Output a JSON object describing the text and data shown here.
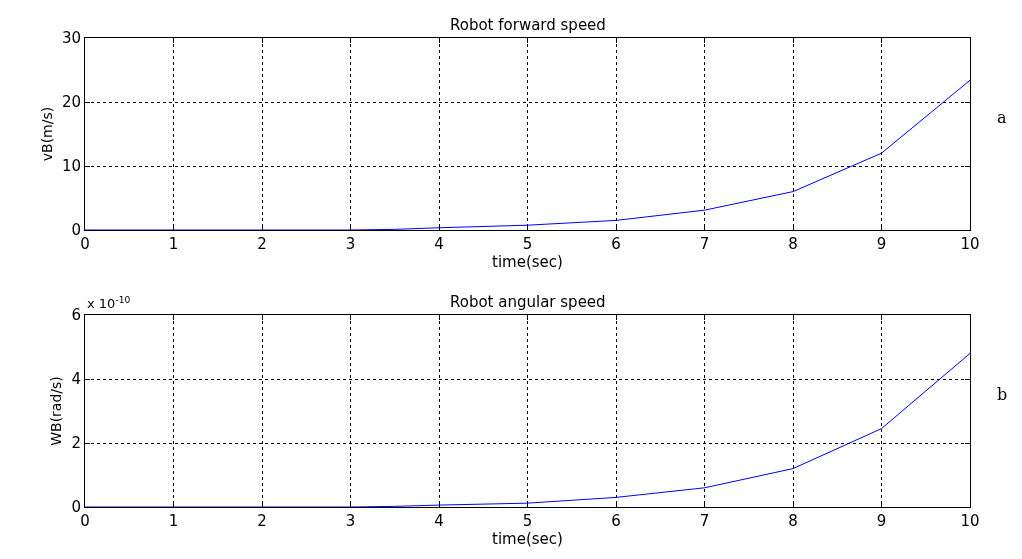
{
  "chart_data": [
    {
      "type": "line",
      "title": "Robot forward speed",
      "xlabel": "time(sec)",
      "ylabel": "vB(m/s)",
      "annotations": [
        "a"
      ],
      "x": [
        0,
        1,
        2,
        3,
        3.5,
        4,
        5,
        6,
        7,
        8,
        9,
        10
      ],
      "series": [
        {
          "color": "#0000ff",
          "values": [
            0,
            0,
            0,
            0,
            0.1,
            0.35,
            0.75,
            1.5,
            3.1,
            6,
            12,
            23.4
          ]
        }
      ],
      "xlim": [
        0,
        10
      ],
      "xticks": [
        0,
        1,
        2,
        3,
        4,
        5,
        6,
        7,
        8,
        9,
        10
      ],
      "ylim": [
        0,
        30
      ],
      "yticks": [
        0,
        10,
        20,
        30
      ],
      "grid": true,
      "marker": "none",
      "line_style": "solid"
    },
    {
      "type": "line",
      "title": "Robot angular speed",
      "xlabel": "time(sec)",
      "ylabel": "WB(rad/s)",
      "annotations": [
        "x 10$^{-10}$",
        "b"
      ],
      "x": [
        0,
        1,
        2,
        3,
        3.5,
        4,
        5,
        6,
        7,
        8,
        9,
        10
      ],
      "series": [
        {
          "color": "#0000ff",
          "values": [
            0,
            0,
            0,
            0,
            0.02,
            0.06,
            0.12,
            0.3,
            0.6,
            1.2,
            2.45,
            4.8
          ]
        }
      ],
      "xlim": [
        0,
        10
      ],
      "xticks": [
        0,
        1,
        2,
        3,
        4,
        5,
        6,
        7,
        8,
        9,
        10
      ],
      "ylim": [
        0,
        6
      ],
      "yticks": [
        0,
        2,
        4,
        6
      ],
      "grid": true,
      "marker": "none",
      "line_style": "solid"
    }
  ]
}
